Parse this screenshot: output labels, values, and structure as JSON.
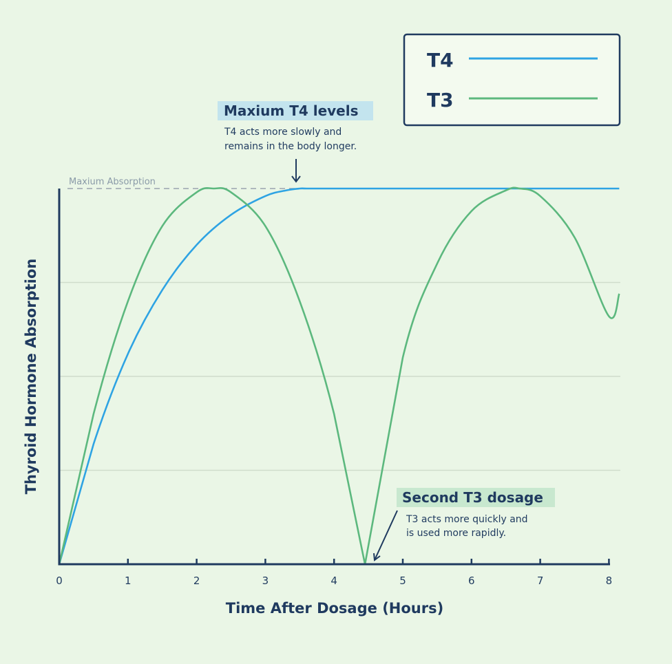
{
  "chart_data": {
    "type": "line",
    "xlabel": "Time After Dosage (Hours)",
    "ylabel": "Thyroid Hormone Absorption",
    "xlim": [
      0,
      8.15
    ],
    "ylim": [
      0,
      1
    ],
    "x_ticks": [
      "0",
      "1",
      "2",
      "3",
      "4",
      "5",
      "6",
      "7",
      "8"
    ],
    "grid": "horizontal",
    "legend_position": "top-right",
    "reference_line": {
      "label": "Maxium Absorption",
      "y": 1
    },
    "series": [
      {
        "name": "T4",
        "color": "#2ea3e3",
        "x": [
          0,
          0.5,
          1,
          1.5,
          2,
          2.5,
          3,
          3.3,
          3.5,
          3.6,
          4,
          5,
          6,
          7,
          8,
          8.15
        ],
        "y": [
          0,
          0.32,
          0.56,
          0.73,
          0.85,
          0.93,
          0.98,
          0.995,
          1,
          1,
          1,
          1,
          1,
          1,
          1,
          1
        ]
      },
      {
        "name": "T3",
        "color": "#5cb87e",
        "x": [
          0,
          0.5,
          1,
          1.5,
          2,
          2.25,
          2.5,
          3,
          3.5,
          4,
          4.45,
          5,
          5.5,
          6,
          6.5,
          6.7,
          7,
          7.5,
          8,
          8.15
        ],
        "y": [
          0,
          0.4,
          0.7,
          0.9,
          0.99,
          1,
          0.99,
          0.9,
          0.7,
          0.4,
          0,
          0.55,
          0.8,
          0.94,
          0.995,
          1,
          0.98,
          0.87,
          0.66,
          0.72
        ]
      }
    ],
    "annotations": [
      {
        "title": "Maxium T4 levels",
        "lines": [
          "T4 acts more slowly and",
          "remains in the body longer."
        ],
        "target": [
          3.45,
          1
        ]
      },
      {
        "title": "Second T3 dosage",
        "lines": [
          "T3 acts more quickly and",
          "is used more rapidly."
        ],
        "target": [
          4.55,
          0
        ]
      }
    ]
  }
}
